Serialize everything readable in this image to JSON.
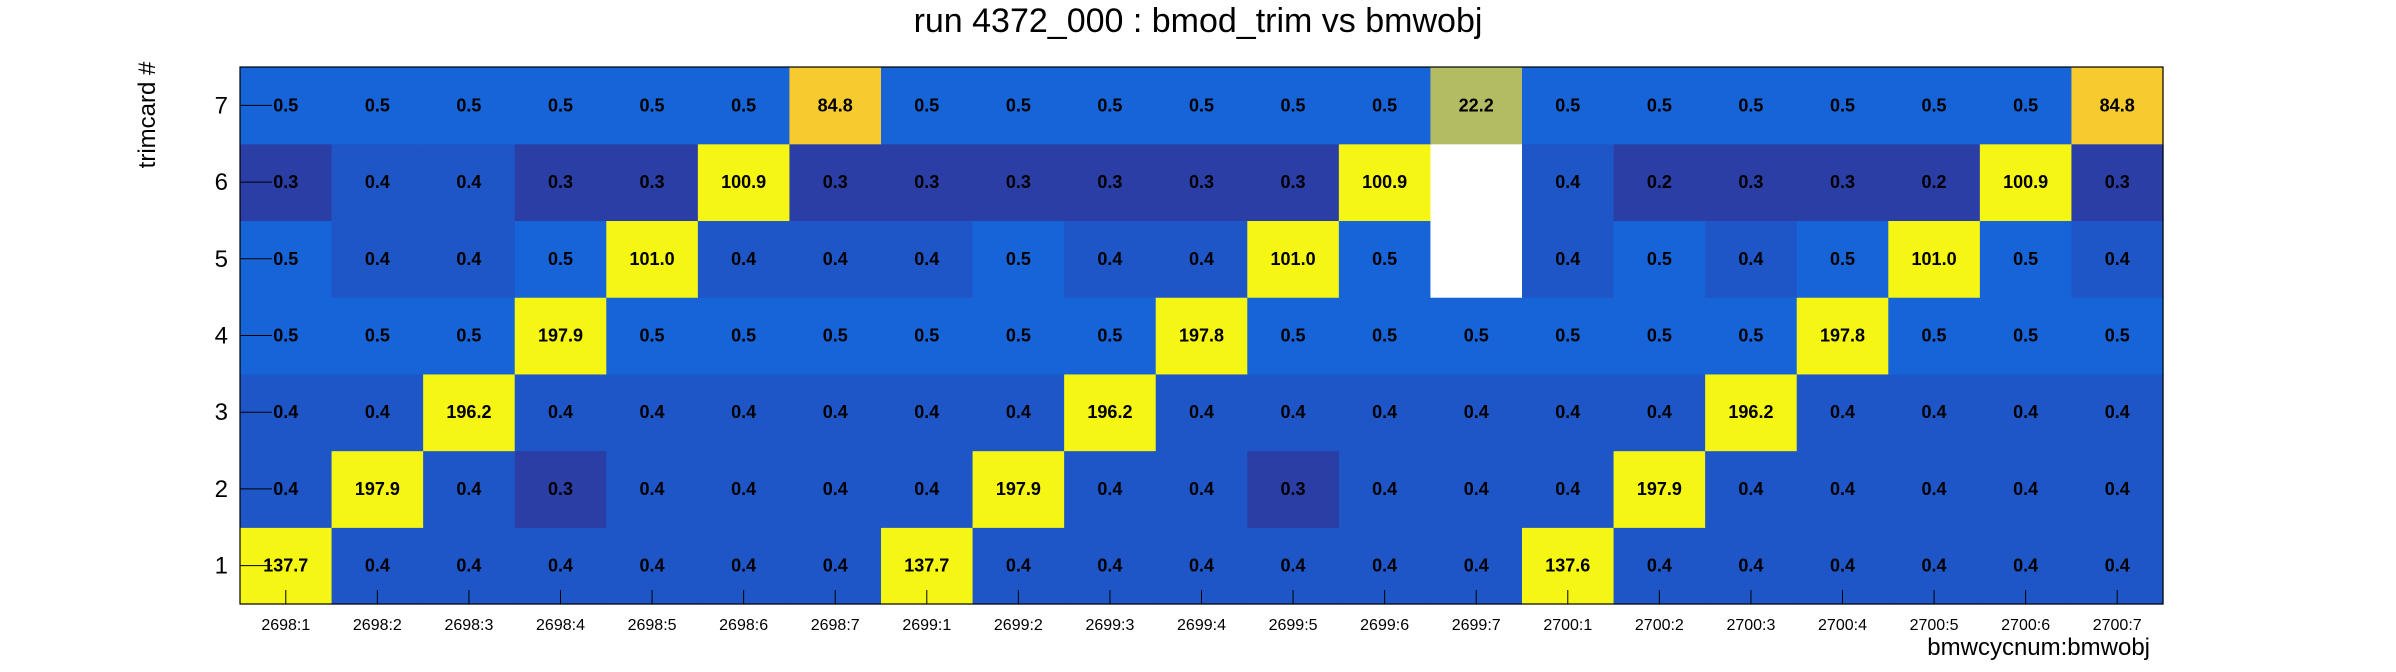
{
  "chart_data": {
    "type": "heatmap",
    "title": "run 4372_000 : bmod_trim vs bmwobj",
    "xlabel": "bmwcycnum:bmwobj",
    "ylabel": "trimcard #",
    "x_categories": [
      "2698:1",
      "2698:2",
      "2698:3",
      "2698:4",
      "2698:5",
      "2698:6",
      "2698:7",
      "2699:1",
      "2699:2",
      "2699:3",
      "2699:4",
      "2699:5",
      "2699:6",
      "2699:7",
      "2700:1",
      "2700:2",
      "2700:3",
      "2700:4",
      "2700:5",
      "2700:6",
      "2700:7"
    ],
    "y_categories": [
      "1",
      "2",
      "3",
      "4",
      "5",
      "6",
      "7"
    ],
    "values": [
      [
        "137.7",
        "0.4",
        "0.4",
        "0.4",
        "0.4",
        "0.4",
        "0.4",
        "137.7",
        "0.4",
        "0.4",
        "0.4",
        "0.4",
        "0.4",
        "0.4",
        "137.6",
        "0.4",
        "0.4",
        "0.4",
        "0.4",
        "0.4",
        "0.4"
      ],
      [
        "0.4",
        "197.9",
        "0.4",
        "0.3",
        "0.4",
        "0.4",
        "0.4",
        "0.4",
        "197.9",
        "0.4",
        "0.4",
        "0.3",
        "0.4",
        "0.4",
        "0.4",
        "197.9",
        "0.4",
        "0.4",
        "0.4",
        "0.4",
        "0.4"
      ],
      [
        "0.4",
        "0.4",
        "196.2",
        "0.4",
        "0.4",
        "0.4",
        "0.4",
        "0.4",
        "0.4",
        "196.2",
        "0.4",
        "0.4",
        "0.4",
        "0.4",
        "0.4",
        "0.4",
        "196.2",
        "0.4",
        "0.4",
        "0.4",
        "0.4"
      ],
      [
        "0.5",
        "0.5",
        "0.5",
        "197.9",
        "0.5",
        "0.5",
        "0.5",
        "0.5",
        "0.5",
        "0.5",
        "197.8",
        "0.5",
        "0.5",
        "0.5",
        "0.5",
        "0.5",
        "0.5",
        "197.8",
        "0.5",
        "0.5",
        "0.5"
      ],
      [
        "0.5",
        "0.4",
        "0.4",
        "0.5",
        "101.0",
        "0.4",
        "0.4",
        "0.4",
        "0.5",
        "0.4",
        "0.4",
        "101.0",
        "0.5",
        null,
        "0.4",
        "0.5",
        "0.4",
        "0.5",
        "101.0",
        "0.5",
        "0.4"
      ],
      [
        "0.3",
        "0.4",
        "0.4",
        "0.3",
        "0.3",
        "100.9",
        "0.3",
        "0.3",
        "0.3",
        "0.3",
        "0.3",
        "0.3",
        "100.9",
        null,
        "0.4",
        "0.2",
        "0.3",
        "0.3",
        "0.2",
        "100.9",
        "0.3"
      ],
      [
        "0.5",
        "0.5",
        "0.5",
        "0.5",
        "0.5",
        "0.5",
        "84.8",
        "0.5",
        "0.5",
        "0.5",
        "0.5",
        "0.5",
        "0.5",
        "22.2",
        "0.5",
        "0.5",
        "0.5",
        "0.5",
        "0.5",
        "0.5",
        "84.8"
      ]
    ],
    "colors": {
      "high": "#f6f614",
      "mid_high": "#f7cb2e",
      "mid": "#b3bc62",
      "low": "#1664d8",
      "low_mid": "#1e56c8",
      "lowest": "#2a3ea5",
      "empty": "#ffffff"
    }
  }
}
